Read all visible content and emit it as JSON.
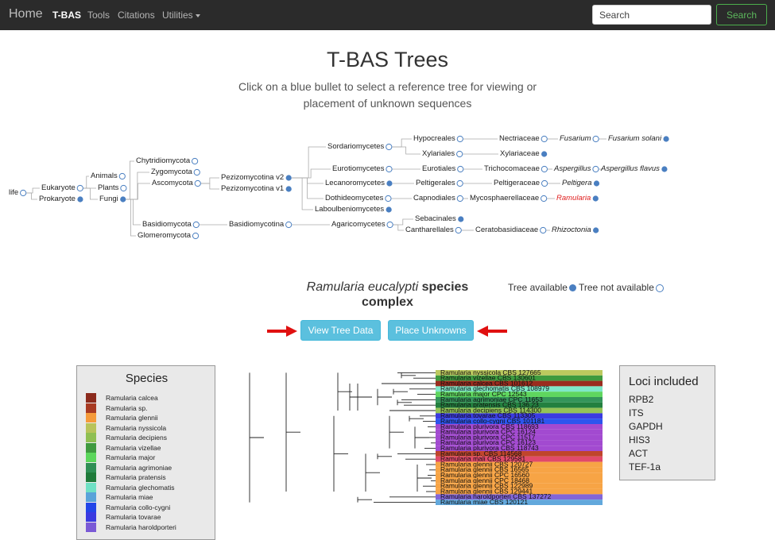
{
  "nav": {
    "home": "Home",
    "links": [
      "T-BAS",
      "Tools",
      "Citations",
      "Utilities"
    ],
    "search_placeholder": "Search",
    "search_button": "Search"
  },
  "page": {
    "title": "T-BAS Trees",
    "subtitle_line1": "Click on a blue bullet to select a reference tree for viewing or",
    "subtitle_line2": "placement of unknown sequences"
  },
  "tree_nodes": [
    {
      "id": "life",
      "label": "life",
      "style": "normal",
      "bullet": "empty"
    },
    {
      "id": "eukaryote",
      "label": "Eukaryote",
      "style": "normal",
      "bullet": "empty"
    },
    {
      "id": "prokaryote",
      "label": "Prokaryote",
      "style": "normal",
      "bullet": "filled"
    },
    {
      "id": "animals",
      "label": "Animals",
      "style": "normal",
      "bullet": "empty"
    },
    {
      "id": "plants",
      "label": "Plants",
      "style": "normal",
      "bullet": "empty"
    },
    {
      "id": "fungi",
      "label": "Fungi",
      "style": "normal",
      "bullet": "filled"
    },
    {
      "id": "chytridiomycota",
      "label": "Chytridiomycota",
      "style": "normal",
      "bullet": "empty"
    },
    {
      "id": "zygomycota",
      "label": "Zygomycota",
      "style": "normal",
      "bullet": "empty"
    },
    {
      "id": "ascomycota",
      "label": "Ascomycota",
      "style": "normal",
      "bullet": "empty"
    },
    {
      "id": "basidiomycota",
      "label": "Basidiomycota",
      "style": "normal",
      "bullet": "empty"
    },
    {
      "id": "glomeromycota",
      "label": "Glomeromycota",
      "style": "normal",
      "bullet": "empty"
    },
    {
      "id": "pezizo2",
      "label": "Pezizomycotina v2",
      "style": "normal",
      "bullet": "filled"
    },
    {
      "id": "pezizo1",
      "label": "Pezizomycotina v1",
      "style": "normal",
      "bullet": "filled"
    },
    {
      "id": "basidiomycotina",
      "label": "Basidiomycotina",
      "style": "normal",
      "bullet": "empty"
    },
    {
      "id": "sordario",
      "label": "Sordariomycetes",
      "style": "normal",
      "bullet": "empty"
    },
    {
      "id": "eurotio",
      "label": "Eurotiomycetes",
      "style": "normal",
      "bullet": "empty"
    },
    {
      "id": "lecanoro",
      "label": "Lecanoromycetes",
      "style": "normal",
      "bullet": "filled"
    },
    {
      "id": "dothideo",
      "label": "Dothideomycetes",
      "style": "normal",
      "bullet": "empty"
    },
    {
      "id": "laboulbenio",
      "label": "Laboulbeniomycetes",
      "style": "normal",
      "bullet": "filled"
    },
    {
      "id": "agarico",
      "label": "Agaricomycetes",
      "style": "normal",
      "bullet": "empty"
    },
    {
      "id": "hypocreales",
      "label": "Hypocreales",
      "style": "normal",
      "bullet": "empty"
    },
    {
      "id": "xylariales",
      "label": "Xylariales",
      "style": "normal",
      "bullet": "empty"
    },
    {
      "id": "eurotiales",
      "label": "Eurotiales",
      "style": "normal",
      "bullet": "empty"
    },
    {
      "id": "peltigerales",
      "label": "Peltigerales",
      "style": "normal",
      "bullet": "empty"
    },
    {
      "id": "capnodiales",
      "label": "Capnodiales",
      "style": "normal",
      "bullet": "empty"
    },
    {
      "id": "sebacinales",
      "label": "Sebacinales",
      "style": "normal",
      "bullet": "filled"
    },
    {
      "id": "cantharellales",
      "label": "Cantharellales",
      "style": "normal",
      "bullet": "empty"
    },
    {
      "id": "nectriaceae",
      "label": "Nectriaceae",
      "style": "normal",
      "bullet": "empty"
    },
    {
      "id": "xylariaceae",
      "label": "Xylariaceae",
      "style": "normal",
      "bullet": "filled"
    },
    {
      "id": "trichocomaceae",
      "label": "Trichocomaceae",
      "style": "normal",
      "bullet": "empty"
    },
    {
      "id": "peltigeraceae",
      "label": "Peltigeraceae",
      "style": "normal",
      "bullet": "empty"
    },
    {
      "id": "mycosphaer",
      "label": "Mycosphaerellaceae",
      "style": "normal",
      "bullet": "empty"
    },
    {
      "id": "ceratobasid",
      "label": "Ceratobasidiaceae",
      "style": "normal",
      "bullet": "empty"
    },
    {
      "id": "fusarium",
      "label": "Fusarium",
      "style": "italic",
      "bullet": "empty"
    },
    {
      "id": "fsolani",
      "label": "Fusarium solani",
      "style": "italic",
      "bullet": "filled"
    },
    {
      "id": "aspergillus",
      "label": "Aspergillus",
      "style": "italic",
      "bullet": "empty"
    },
    {
      "id": "aflavus",
      "label": "Aspergillus flavus",
      "style": "italic",
      "bullet": "filled"
    },
    {
      "id": "peltigera",
      "label": "Peltigera",
      "style": "italic",
      "bullet": "filled"
    },
    {
      "id": "ramularia",
      "label": "Ramularia",
      "style": "red",
      "bullet": "filled"
    },
    {
      "id": "rhizoctonia",
      "label": "Rhizoctonia",
      "style": "italic",
      "bullet": "filled"
    }
  ],
  "complex": {
    "title_italic": "Ramularia eucalypti",
    "title_rest": " species",
    "title_line2": "complex"
  },
  "availability": {
    "available": "Tree available",
    "not_available": "Tree not available"
  },
  "buttons": {
    "view": "View Tree Data",
    "place": "Place Unknowns"
  },
  "species_legend": {
    "title": "Species",
    "items": [
      {
        "name": "Ramularia calcea",
        "color": "#8b2a1c"
      },
      {
        "name": "Ramularia sp.",
        "color": "#a83a22"
      },
      {
        "name": "Ramularia glennii",
        "color": "#f59a3a"
      },
      {
        "name": "Ramularia nyssicola",
        "color": "#b9c35a"
      },
      {
        "name": "Ramularia decipiens",
        "color": "#8fbf52"
      },
      {
        "name": "Ramularia vizellae",
        "color": "#3f9a3f"
      },
      {
        "name": "Ramularia major",
        "color": "#5bd65b"
      },
      {
        "name": "Ramularia agrimoniae",
        "color": "#2f8f55"
      },
      {
        "name": "Ramularia pratensis",
        "color": "#1f7a3a"
      },
      {
        "name": "Ramularia glechomatis",
        "color": "#6fe0c4"
      },
      {
        "name": "Ramularia miae",
        "color": "#5aa3d9"
      },
      {
        "name": "Ramularia collo-cygni",
        "color": "#2346e8"
      },
      {
        "name": "Ramularia tovarae",
        "color": "#3a3ae0"
      },
      {
        "name": "Ramularia haroldporteri",
        "color": "#7a5ad6"
      }
    ]
  },
  "loci": {
    "title": "Loci included",
    "items": [
      "RPB2",
      "ITS",
      "GAPDH",
      "HIS3",
      "ACT",
      "TEF-1a"
    ]
  },
  "tree_labels": [
    {
      "text": "Ramularia nyssicola CBS 127665",
      "color": "#bcc95e"
    },
    {
      "text": "Ramularia vizellae CBS 130601",
      "color": "#3e9a3e"
    },
    {
      "text": "Ramularia calcea CBS 101612",
      "color": "#9a2c1e"
    },
    {
      "text": "Ramularia glechomatis CBS 108979",
      "color": "#7ee8c8"
    },
    {
      "text": "Ramularia major CPC 12543",
      "color": "#5fd65f"
    },
    {
      "text": "Ramularia agrimoniae CPC 11653",
      "color": "#34955a"
    },
    {
      "text": "Ramularia pratensis CBS 136.23",
      "color": "#23803f"
    },
    {
      "text": "Ramularia decipiens CBS 114300",
      "color": "#94c356"
    },
    {
      "text": "Ramularia tovarae CBS 113305",
      "color": "#3b3be0"
    },
    {
      "text": "Ramularia collo-cygni CBS 101181",
      "color": "#2c55ee"
    },
    {
      "text": "Ramularia plurivora CBS 118693",
      "color": "#a24ad0"
    },
    {
      "text": "Ramularia plurivora CPC 16124",
      "color": "#a24ad0"
    },
    {
      "text": "Ramularia plurivora CPC 11517",
      "color": "#a24ad0"
    },
    {
      "text": "Ramularia plurivora CPC 16123",
      "color": "#a24ad0"
    },
    {
      "text": "Ramularia plurivora CBS 118743",
      "color": "#a24ad0"
    },
    {
      "text": "Ramularia sp. CBS 114568",
      "color": "#c0452c"
    },
    {
      "text": "Ramularia mali CBS 129581",
      "color": "#e14a6a"
    },
    {
      "text": "Ramularia glennii CBS 120727",
      "color": "#f7a445"
    },
    {
      "text": "Ramularia glennii CBS 16565",
      "color": "#f7a445"
    },
    {
      "text": "Ramularia glennii CPC 16560",
      "color": "#f7a445"
    },
    {
      "text": "Ramularia glennii CPC 18468",
      "color": "#f7a445"
    },
    {
      "text": "Ramularia glennii CBS 122989",
      "color": "#f7a445"
    },
    {
      "text": "Ramularia glennii CBS 129441",
      "color": "#f7a445"
    },
    {
      "text": "Ramularia haroldporteri CBS 137272",
      "color": "#8266d8"
    },
    {
      "text": "Ramularia miae CBS 120121",
      "color": "#62a8dc"
    }
  ]
}
